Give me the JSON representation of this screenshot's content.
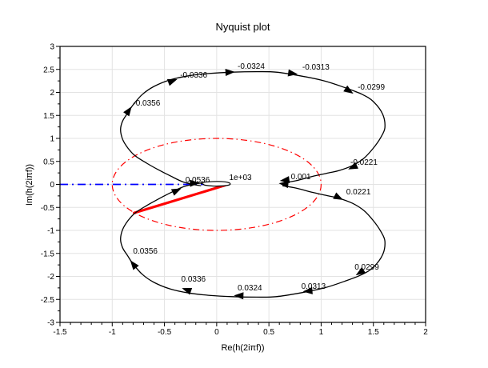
{
  "figure": {
    "title": "Nyquist plot",
    "xlabel": "Re(h(2iπf))",
    "ylabel": "Im(h(2iπf))"
  },
  "chart_data": {
    "type": "line",
    "title": "Nyquist plot",
    "xlabel": "Re(h(2iπf))",
    "ylabel": "Im(h(2iπf))",
    "xlim": [
      -1.5,
      2
    ],
    "ylim": [
      -3,
      3
    ],
    "xticks": [
      -1.5,
      -1,
      -0.5,
      0,
      0.5,
      1,
      1.5,
      2
    ],
    "yticks": [
      -3,
      -2.5,
      -2,
      -1.5,
      -1,
      -0.5,
      0,
      0.5,
      1,
      1.5,
      2,
      2.5,
      3
    ],
    "x_minor_per_major": 4,
    "y_minor_per_major": 1,
    "grid": true,
    "legend_position": "none",
    "colors": {
      "curve": "#000000",
      "unit_circle": "#ff0000",
      "critical_segment": "#ff0000",
      "zero_line": "#0000ff",
      "grid": "#e3e3e3",
      "axis": "#000000"
    },
    "unit_circle": {
      "cx": 0,
      "cy": 0,
      "r": 1,
      "style": "dash-dot"
    },
    "zero_line": {
      "y": 0,
      "x_from": -1.5,
      "x_to": 0.01,
      "style": "dash-dot"
    },
    "critical_segment": {
      "from": [
        0.08,
        -0.02
      ],
      "to": [
        -0.79,
        -0.62
      ]
    },
    "curve_positive_branch": [
      [
        0.63,
        -0.03
      ],
      [
        0.76,
        -0.08
      ],
      [
        0.91,
        -0.17
      ],
      [
        1.07,
        -0.25
      ],
      [
        1.17,
        -0.3
      ],
      [
        1.3,
        -0.41
      ],
      [
        1.41,
        -0.57
      ],
      [
        1.5,
        -0.79
      ],
      [
        1.57,
        -1.02
      ],
      [
        1.61,
        -1.23
      ],
      [
        1.59,
        -1.52
      ],
      [
        1.5,
        -1.8
      ],
      [
        1.39,
        -1.96
      ],
      [
        1.22,
        -2.11
      ],
      [
        1.03,
        -2.25
      ],
      [
        0.8,
        -2.36
      ],
      [
        0.57,
        -2.44
      ],
      [
        0.38,
        -2.45
      ],
      [
        0.15,
        -2.44
      ],
      [
        -0.08,
        -2.41
      ],
      [
        -0.27,
        -2.36
      ],
      [
        -0.45,
        -2.27
      ],
      [
        -0.6,
        -2.13
      ],
      [
        -0.71,
        -1.96
      ],
      [
        -0.8,
        -1.73
      ],
      [
        -0.85,
        -1.56
      ],
      [
        -0.9,
        -1.38
      ],
      [
        -0.92,
        -1.19
      ],
      [
        -0.9,
        -0.98
      ],
      [
        -0.85,
        -0.79
      ],
      [
        -0.78,
        -0.62
      ],
      [
        -0.67,
        -0.46
      ],
      [
        -0.56,
        -0.32
      ],
      [
        -0.44,
        -0.18
      ],
      [
        -0.33,
        -0.06
      ],
      [
        -0.23,
        0.0
      ],
      [
        -0.15,
        0.03
      ]
    ],
    "negative_branch_is_mirror": true,
    "origin_loop": [
      [
        -0.15,
        0.035
      ],
      [
        -0.07,
        0.057
      ],
      [
        0.01,
        0.064
      ],
      [
        0.08,
        0.056
      ],
      [
        0.12,
        0.033
      ],
      [
        0.13,
        0.006
      ],
      [
        0.11,
        -0.018
      ],
      [
        0.05,
        -0.033
      ],
      [
        -0.04,
        -0.035
      ],
      [
        -0.11,
        -0.017
      ],
      [
        -0.13,
        0.005
      ]
    ],
    "freq_labels": [
      {
        "text": "-0.0356",
        "x": -0.8,
        "y": 1.71
      },
      {
        "text": "-0.0336",
        "x": -0.35,
        "y": 2.32
      },
      {
        "text": "-0.0324",
        "x": 0.2,
        "y": 2.51
      },
      {
        "text": "-0.0313",
        "x": 0.82,
        "y": 2.5
      },
      {
        "text": "-0.0299",
        "x": 1.35,
        "y": 2.06
      },
      {
        "text": "-0.0221",
        "x": 1.28,
        "y": 0.43
      },
      {
        "text": "0.001",
        "x": 0.71,
        "y": 0.11
      },
      {
        "text": "1e+03",
        "x": 0.12,
        "y": 0.1
      },
      {
        "text": "0.0536",
        "x": -0.3,
        "y": 0.04
      },
      {
        "text": "0.0221",
        "x": 1.24,
        "y": -0.22
      },
      {
        "text": "0.0299",
        "x": 1.32,
        "y": -1.85
      },
      {
        "text": "0.0313",
        "x": 0.81,
        "y": -2.27
      },
      {
        "text": "0.0324",
        "x": 0.2,
        "y": -2.3
      },
      {
        "text": "0.0336",
        "x": -0.34,
        "y": -2.11
      },
      {
        "text": "0.0356",
        "x": -0.8,
        "y": -1.5
      }
    ],
    "arrows": [
      {
        "x": -0.84,
        "y": 1.61,
        "rot": -55
      },
      {
        "x": -0.42,
        "y": 2.25,
        "rot": -20
      },
      {
        "x": 0.13,
        "y": 2.44,
        "rot": -3
      },
      {
        "x": 0.73,
        "y": 2.41,
        "rot": 8
      },
      {
        "x": 1.27,
        "y": 2.03,
        "rot": 33
      },
      {
        "x": 1.3,
        "y": 0.37,
        "rot": 155
      },
      {
        "x": 0.65,
        "y": 0.09,
        "rot": 173
      },
      {
        "x": 0.64,
        "y": 0.01,
        "rot": 187
      },
      {
        "x": 1.17,
        "y": -0.29,
        "rot": 27
      },
      {
        "x": 1.37,
        "y": -1.92,
        "rot": 147
      },
      {
        "x": 0.87,
        "y": -2.32,
        "rot": 175
      },
      {
        "x": 0.21,
        "y": -2.42,
        "rot": 182
      },
      {
        "x": -0.29,
        "y": -2.29,
        "rot": 200
      },
      {
        "x": -0.8,
        "y": -1.73,
        "rot": 232
      },
      {
        "x": -0.38,
        "y": -0.13,
        "rot": -25
      },
      {
        "x": -0.21,
        "y": 0.03,
        "rot": -3
      }
    ]
  }
}
